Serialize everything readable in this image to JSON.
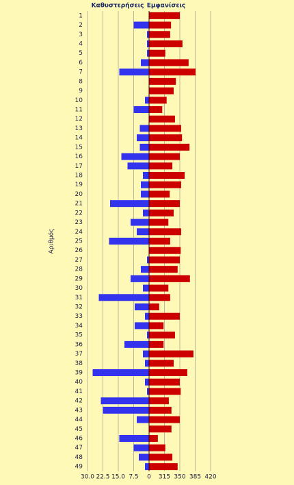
{
  "chart_data": {
    "type": "butterfly",
    "y_label": "Αριθμός",
    "categories": [
      "1",
      "2",
      "3",
      "4",
      "5",
      "6",
      "7",
      "8",
      "9",
      "10",
      "11",
      "12",
      "13",
      "14",
      "15",
      "16",
      "17",
      "18",
      "19",
      "20",
      "21",
      "22",
      "23",
      "24",
      "25",
      "26",
      "27",
      "28",
      "29",
      "30",
      "31",
      "32",
      "33",
      "34",
      "35",
      "36",
      "37",
      "38",
      "39",
      "40",
      "41",
      "42",
      "43",
      "44",
      "45",
      "46",
      "47",
      "48",
      "49"
    ],
    "series": [
      {
        "name": "Καθυστερήσεις",
        "color": "#3333ee",
        "axis": "x",
        "values": [
          0,
          7.5,
          1,
          1,
          1,
          4,
          14.5,
          0,
          0,
          2,
          7.5,
          0,
          4.5,
          6,
          4.5,
          13.5,
          10.5,
          3,
          4,
          4,
          19,
          3,
          9,
          6,
          19.5,
          0,
          1,
          4,
          9,
          3,
          24.5,
          7,
          2,
          7,
          1,
          12,
          3,
          2,
          27.5,
          2,
          1,
          23.5,
          22.5,
          6,
          0,
          14.5,
          7.5,
          5,
          2
        ]
      },
      {
        "name": "Εμφανίσεις",
        "color": "#cc0000",
        "axis": "x2",
        "values": [
          350,
          330,
          328,
          356,
          317,
          370,
          386,
          341,
          336,
          320,
          310,
          339,
          353,
          355,
          372,
          350,
          333,
          361,
          353,
          327,
          350,
          336,
          324,
          353,
          328,
          352,
          350,
          345,
          373,
          324,
          328,
          303,
          350,
          313,
          339,
          313,
          381,
          336,
          367,
          350,
          352,
          325,
          331,
          350,
          331,
          300,
          317,
          333,
          345
        ]
      }
    ],
    "xlim": [
      30,
      0
    ],
    "xticks": [
      {
        "value": 30,
        "label": "30.0"
      },
      22.5,
      {
        "value": 15,
        "label": "15.0"
      },
      7.5,
      0
    ],
    "x2lim": [
      280,
      420
    ],
    "x2ticks": [
      315,
      350,
      385,
      420
    ],
    "grid": true
  }
}
